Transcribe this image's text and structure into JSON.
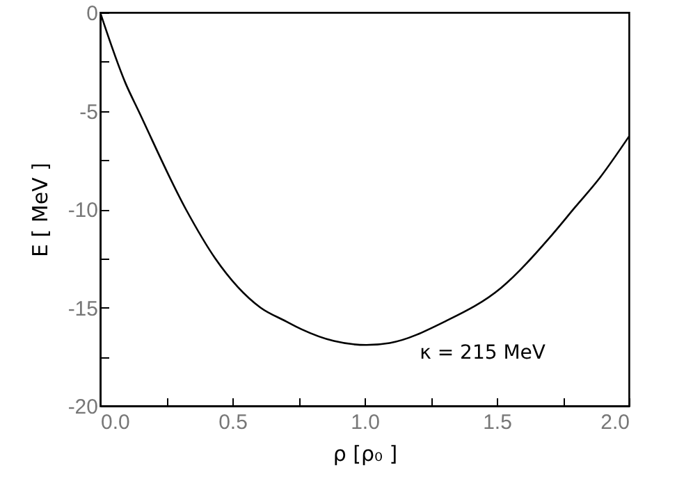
{
  "chart_data": {
    "type": "line",
    "xlabel": "ρ [ρ₀ ]",
    "ylabel": "E [ MeV ]",
    "x": [
      0,
      0.096,
      0.145,
      0.324,
      0.435,
      0.606,
      0.703,
      0.761,
      0.884,
      1.007,
      1.095,
      1.305,
      1.516,
      1.709,
      1.796,
      1.884,
      2.0
    ],
    "series": [
      {
        "color": "#000000",
        "values": [
          0,
          -3.6,
          -5.0,
          -10.0,
          -12.5,
          -15.0,
          -15.7,
          -16.1,
          -16.7,
          -16.9,
          -16.8,
          -15.7,
          -14.0,
          -11.3,
          -9.9,
          -8.5,
          -6.3
        ]
      }
    ],
    "xlim": [
      0,
      2.0
    ],
    "ylim": [
      -20,
      0
    ],
    "xticks": [
      {
        "value": 0,
        "label": "0.0"
      },
      {
        "value": 0.25,
        "label": null
      },
      0.5,
      {
        "value": 0.75,
        "label": null
      },
      {
        "value": 1,
        "label": "1.0"
      },
      {
        "value": 1.25,
        "label": null
      },
      1.5,
      {
        "value": 1.75,
        "label": null
      },
      {
        "value": 2,
        "label": "2.0"
      }
    ],
    "yticks": [
      -20,
      {
        "value": -17.5,
        "label": null
      },
      -15,
      {
        "value": -12.5,
        "label": null
      },
      -10,
      {
        "value": -7.5,
        "label": null
      },
      -5,
      {
        "value": -2.5,
        "label": null
      },
      0
    ],
    "annotations": [
      "κ = 215 MeV"
    ],
    "line_style": "solid"
  }
}
